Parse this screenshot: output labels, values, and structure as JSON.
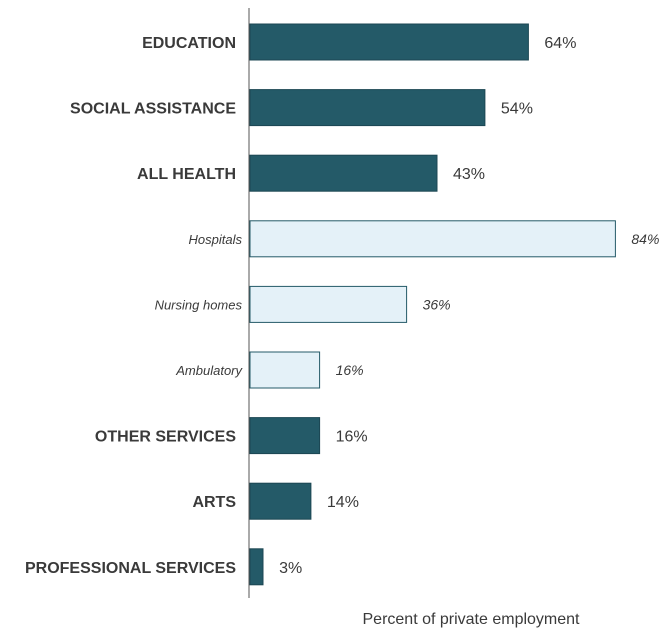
{
  "chart_data": {
    "type": "bar",
    "orientation": "horizontal",
    "title": "",
    "xlabel": "Percent of private employment",
    "ylabel": "",
    "xlim": [
      0,
      88
    ],
    "grid": false,
    "categories": [
      "EDUCATION",
      "SOCIAL ASSISTANCE",
      "ALL HEALTH",
      "Hospitals",
      "Nursing homes",
      "Ambulatory",
      "OTHER SERVICES",
      "ARTS",
      "PROFESSIONAL SERVICES"
    ],
    "values": [
      64,
      54,
      43,
      84,
      36,
      16,
      16,
      14,
      3
    ],
    "value_labels": [
      "64%",
      "54%",
      "43%",
      "84%",
      "36%",
      "16%",
      "16%",
      "14%",
      "3%"
    ],
    "subcategory": [
      false,
      false,
      false,
      true,
      true,
      true,
      false,
      false,
      false
    ],
    "colors": {
      "main_fill": "#245a68",
      "sub_fill": "#e4f1f8",
      "sub_stroke": "#245a68",
      "text": "#3a3a3a",
      "axis": "#555555"
    }
  }
}
